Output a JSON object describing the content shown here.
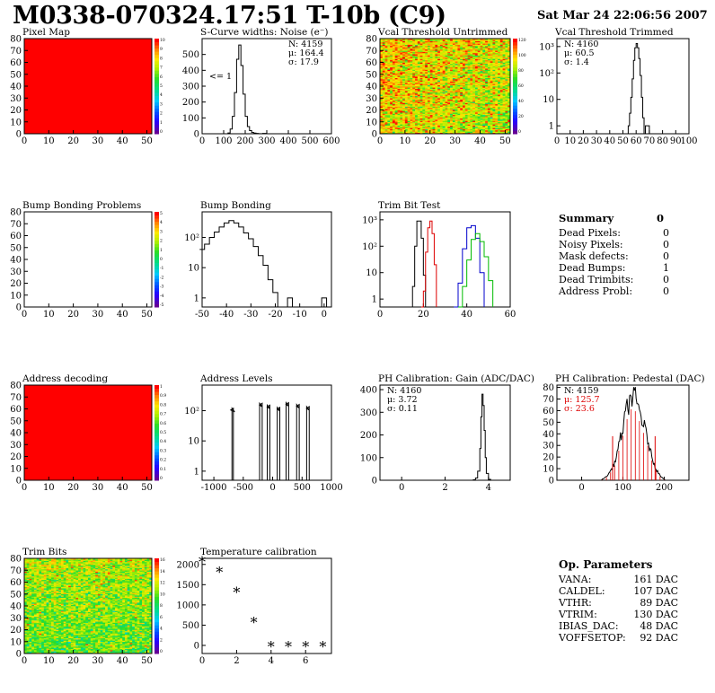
{
  "header": {
    "title": "M0338-070324.17:51 T-10b (C9)",
    "date": "Sat Mar 24 22:06:56 2007"
  },
  "colors": {
    "hist_line": "#000000",
    "red_trim": "#dd0000",
    "blue_trim": "#0000cc",
    "green_trim": "#00bb00",
    "red_stat": "#dd0000",
    "map_red": "#ff0000"
  },
  "summary": {
    "title": "Summary",
    "total": "0",
    "items": [
      {
        "label": "Dead Pixels:",
        "value": "0"
      },
      {
        "label": "Noisy Pixels:",
        "value": "0"
      },
      {
        "label": "Mask defects:",
        "value": "0"
      },
      {
        "label": "Dead Bumps:",
        "value": "1"
      },
      {
        "label": "Dead Trimbits:",
        "value": "0"
      },
      {
        "label": "Address Probl:",
        "value": "0"
      }
    ]
  },
  "op_params": {
    "title": "Op. Parameters",
    "items": [
      {
        "label": "VANA:",
        "value": "161 DAC"
      },
      {
        "label": "CALDEL:",
        "value": "107 DAC"
      },
      {
        "label": "VTHR:",
        "value": "89 DAC"
      },
      {
        "label": "VTRIM:",
        "value": "130 DAC"
      },
      {
        "label": "IBIAS_DAC:",
        "value": "48 DAC"
      },
      {
        "label": "VOFFSETOP:",
        "value": "92 DAC"
      }
    ]
  },
  "chart_data": [
    {
      "id": "pixel_map",
      "type": "heatmap",
      "title": "Pixel Map",
      "xlim": [
        0,
        52
      ],
      "ylim": [
        0,
        80
      ],
      "xticks": [
        0,
        10,
        20,
        30,
        40,
        50
      ],
      "yticks": [
        0,
        10,
        20,
        30,
        40,
        50,
        60,
        70,
        80
      ],
      "fill": "uniform-max",
      "palette_ticks": [
        "10",
        "9",
        "8",
        "7",
        "6",
        "5",
        "4",
        "3",
        "2",
        "1",
        "0"
      ]
    },
    {
      "id": "scurve_noise",
      "type": "line",
      "title": "S-Curve widths: Noise (e⁻)",
      "xlim": [
        0,
        600
      ],
      "ylim": [
        0,
        600
      ],
      "xticks": [
        0,
        100,
        200,
        300,
        400,
        500,
        600
      ],
      "yticks": [
        0,
        100,
        200,
        300,
        400,
        500
      ],
      "stats": [
        {
          "text": "N: 4159"
        },
        {
          "text": "μ: 164.4"
        },
        {
          "text": "σ: 17.9"
        }
      ],
      "annotation": "<= 1",
      "series": [
        {
          "x": [
            0,
            110,
            120,
            130,
            140,
            150,
            160,
            170,
            180,
            190,
            200,
            210,
            220,
            230,
            240,
            250,
            260,
            270,
            280,
            300,
            600
          ],
          "y": [
            0,
            0,
            5,
            30,
            110,
            260,
            470,
            560,
            430,
            250,
            110,
            45,
            20,
            8,
            4,
            2,
            1,
            0,
            2,
            0,
            0
          ]
        }
      ]
    },
    {
      "id": "vcal_untrimmed",
      "type": "heatmap",
      "title": "Vcal Threshold Untrimmed",
      "xlim": [
        0,
        52
      ],
      "ylim": [
        0,
        80
      ],
      "xticks": [
        0,
        10,
        20,
        30,
        40,
        50
      ],
      "yticks": [
        0,
        10,
        20,
        30,
        40,
        50,
        60,
        70,
        80
      ],
      "fill": "noisy-hot",
      "value_range": [
        0,
        120
      ],
      "palette_ticks": [
        "120",
        "100",
        "80",
        "60",
        "40",
        "20",
        "0"
      ]
    },
    {
      "id": "vcal_trimmed",
      "type": "line",
      "title": "Vcal Threshold Trimmed",
      "xlim": [
        0,
        100
      ],
      "log_y": true,
      "ylim": [
        0.5,
        2000
      ],
      "xticks": [
        0,
        10,
        20,
        30,
        40,
        50,
        60,
        70,
        80,
        90,
        100
      ],
      "yticks": [
        1,
        10,
        100,
        1000
      ],
      "stats": [
        {
          "text": "N: 4160"
        },
        {
          "text": "μ: 60.5"
        },
        {
          "text": "σ:  1.4"
        }
      ],
      "series": [
        {
          "x": [
            50,
            54,
            55,
            56,
            57,
            58,
            59,
            60,
            61,
            62,
            63,
            64,
            65,
            66,
            67,
            68,
            69,
            70
          ],
          "y": [
            0,
            1,
            3,
            12,
            60,
            300,
            900,
            1300,
            900,
            350,
            80,
            12,
            2,
            0,
            1,
            1,
            1,
            0
          ]
        }
      ]
    },
    {
      "id": "bump_problems",
      "type": "heatmap",
      "title": "Bump Bonding Problems",
      "xlim": [
        0,
        52
      ],
      "ylim": [
        0,
        80
      ],
      "xticks": [
        0,
        10,
        20,
        30,
        40,
        50
      ],
      "yticks": [
        0,
        10,
        20,
        30,
        40,
        50,
        60,
        70,
        80
      ],
      "fill": "empty",
      "palette_ticks": [
        "5",
        "4",
        "3",
        "2",
        "1",
        "0",
        "-1",
        "-2",
        "-3",
        "-4",
        "-5"
      ]
    },
    {
      "id": "bump_bonding",
      "type": "line",
      "title": "Bump Bonding",
      "xlim": [
        -50,
        3
      ],
      "log_y": true,
      "ylim": [
        0.5,
        700
      ],
      "xticks": [
        -50,
        -40,
        -30,
        -20,
        -10,
        0
      ],
      "yticks": [
        1,
        10,
        100
      ],
      "series": [
        {
          "x": [
            -51,
            -49,
            -47,
            -45,
            -43,
            -41,
            -39,
            -37,
            -35,
            -33,
            -31,
            -29,
            -27,
            -25,
            -23,
            -21,
            -19,
            -17,
            -15,
            -13,
            -11,
            -9,
            -7,
            -5,
            -3,
            -1,
            1,
            3
          ],
          "y": [
            40,
            60,
            100,
            150,
            220,
            300,
            360,
            300,
            220,
            140,
            90,
            50,
            25,
            12,
            4,
            1.5,
            0.4,
            0.4,
            1,
            0.4,
            0.4,
            0.4,
            0.4,
            0.4,
            0.4,
            1,
            0.4,
            0.4
          ]
        }
      ]
    },
    {
      "id": "trim_bit_test",
      "type": "line",
      "title": "Trim Bit Test",
      "xlim": [
        0,
        60
      ],
      "log_y": true,
      "ylim": [
        0.5,
        2000
      ],
      "xticks": [
        0,
        20,
        40,
        60
      ],
      "yticks": [
        1,
        10,
        100,
        1000
      ],
      "series": [
        {
          "color": "#000000",
          "x": [
            14,
            15,
            16,
            17,
            18,
            19,
            20,
            21
          ],
          "y": [
            0.4,
            3,
            100,
            900,
            900,
            200,
            8,
            0.4
          ]
        },
        {
          "color": "#dd0000",
          "x": [
            19,
            20,
            21,
            22,
            23,
            24,
            25,
            26
          ],
          "y": [
            0.4,
            2,
            60,
            500,
            900,
            300,
            20,
            0.4
          ]
        },
        {
          "color": "#0000cc",
          "x": [
            34,
            36,
            38,
            40,
            42,
            44,
            46,
            48
          ],
          "y": [
            0.4,
            4,
            80,
            500,
            600,
            200,
            10,
            0.4
          ]
        },
        {
          "color": "#00bb00",
          "x": [
            36,
            38,
            40,
            42,
            44,
            46,
            48,
            50,
            52
          ],
          "y": [
            0.4,
            3,
            30,
            180,
            300,
            150,
            40,
            5,
            0.4
          ]
        }
      ]
    },
    {
      "id": "address_decoding",
      "type": "heatmap",
      "title": "Address decoding",
      "xlim": [
        0,
        52
      ],
      "ylim": [
        0,
        80
      ],
      "xticks": [
        0,
        10,
        20,
        30,
        40,
        50
      ],
      "yticks": [
        0,
        10,
        20,
        30,
        40,
        50,
        60,
        70,
        80
      ],
      "fill": "uniform-max",
      "palette_ticks": [
        "1",
        "0.9",
        "0.8",
        "0.7",
        "0.6",
        "0.5",
        "0.4",
        "0.3",
        "0.2",
        "0.1",
        "0"
      ]
    },
    {
      "id": "address_levels",
      "type": "line",
      "title": "Address Levels",
      "xlim": [
        -1200,
        1000
      ],
      "log_y": true,
      "ylim": [
        0.5,
        700
      ],
      "xticks": [
        -1000,
        -500,
        0,
        500,
        1000
      ],
      "yticks": [
        1,
        10,
        100
      ],
      "series": [
        {
          "peaks": [
            -680,
            -200,
            -70,
            100,
            250,
            430,
            600
          ],
          "peak_height": 200
        }
      ]
    },
    {
      "id": "ph_gain",
      "type": "line",
      "title": "PH Calibration: Gain (ADC/DAC)",
      "xlim": [
        -1,
        5
      ],
      "ylim": [
        0,
        420
      ],
      "xticks": [
        0,
        2,
        4
      ],
      "yticks": [
        0,
        100,
        200,
        300,
        400
      ],
      "stats": [
        {
          "text": "N: 4160"
        },
        {
          "text": "μ: 3.72"
        },
        {
          "text": "σ: 0.11"
        }
      ],
      "series": [
        {
          "x": [
            3.1,
            3.3,
            3.4,
            3.5,
            3.6,
            3.65,
            3.7,
            3.75,
            3.8,
            3.85,
            3.9,
            4.0,
            4.1
          ],
          "y": [
            0,
            2,
            10,
            40,
            140,
            280,
            380,
            330,
            220,
            100,
            30,
            4,
            0
          ]
        }
      ]
    },
    {
      "id": "ph_pedestal",
      "type": "line",
      "title": "PH Calibration: Pedestal (DAC)",
      "xlim": [
        -60,
        260
      ],
      "ylim": [
        0,
        82
      ],
      "xticks": [
        0,
        100,
        200
      ],
      "yticks": [
        0,
        10,
        20,
        30,
        40,
        50,
        60,
        70,
        80
      ],
      "stats": [
        {
          "text": "N: 4159",
          "color": "#000000"
        },
        {
          "text": "μ: 125.7",
          "color": "#dd0000"
        },
        {
          "text": "σ: 23.6",
          "color": "#dd0000"
        }
      ],
      "series": [
        {
          "x": [
            50,
            60,
            70,
            80,
            90,
            100,
            110,
            120,
            130,
            140,
            150,
            160,
            170,
            180,
            190,
            200
          ],
          "y": [
            1,
            3,
            8,
            15,
            30,
            45,
            62,
            72,
            70,
            60,
            48,
            35,
            20,
            10,
            4,
            1
          ]
        }
      ]
    },
    {
      "id": "trim_bits",
      "type": "heatmap",
      "title": "Trim Bits",
      "xlim": [
        0,
        52
      ],
      "ylim": [
        0,
        80
      ],
      "xticks": [
        0,
        10,
        20,
        30,
        40,
        50
      ],
      "yticks": [
        0,
        10,
        20,
        30,
        40,
        50,
        60,
        70,
        80
      ],
      "fill": "noisy-mid",
      "value_range": [
        0,
        16
      ],
      "palette_ticks": [
        "16",
        "14",
        "12",
        "10",
        "8",
        "6",
        "4",
        "2",
        "0"
      ]
    },
    {
      "id": "temperature_calibration",
      "type": "scatter",
      "title": "Temperature calibration",
      "xlim": [
        0,
        7.5
      ],
      "ylim": [
        -200,
        2150
      ],
      "xticks": [
        0,
        2,
        4,
        6
      ],
      "yticks": [
        0,
        500,
        1000,
        1500,
        2000
      ],
      "series": [
        {
          "x": [
            0,
            1,
            2,
            3,
            4,
            5,
            6,
            7
          ],
          "y": [
            2050,
            1800,
            1300,
            550,
            -50,
            -50,
            -50,
            -50
          ]
        }
      ]
    }
  ]
}
